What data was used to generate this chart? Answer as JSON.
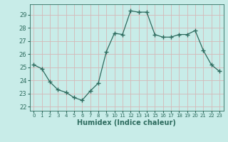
{
  "x": [
    0,
    1,
    2,
    3,
    4,
    5,
    6,
    7,
    8,
    9,
    10,
    11,
    12,
    13,
    14,
    15,
    16,
    17,
    18,
    19,
    20,
    21,
    22,
    23
  ],
  "y": [
    25.2,
    24.9,
    23.9,
    23.3,
    23.1,
    22.7,
    22.5,
    23.2,
    23.8,
    26.2,
    27.6,
    27.5,
    29.3,
    29.2,
    29.2,
    27.5,
    27.3,
    27.3,
    27.5,
    27.5,
    27.8,
    26.3,
    25.2,
    24.7
  ],
  "line_color": "#2d6b5e",
  "marker": "+",
  "marker_size": 4,
  "bg_color": "#c8ece8",
  "grid_color": "#d4b8b8",
  "tick_color": "#2d6b5e",
  "xlabel": "Humidex (Indice chaleur)",
  "ylabel_ticks": [
    22,
    23,
    24,
    25,
    26,
    27,
    28,
    29
  ],
  "xtick_labels": [
    "0",
    "1",
    "2",
    "3",
    "4",
    "5",
    "6",
    "7",
    "8",
    "9",
    "10",
    "11",
    "12",
    "13",
    "14",
    "15",
    "16",
    "17",
    "18",
    "19",
    "20",
    "21",
    "22",
    "23"
  ],
  "ylim": [
    21.7,
    29.8
  ],
  "xlim": [
    -0.5,
    23.5
  ]
}
